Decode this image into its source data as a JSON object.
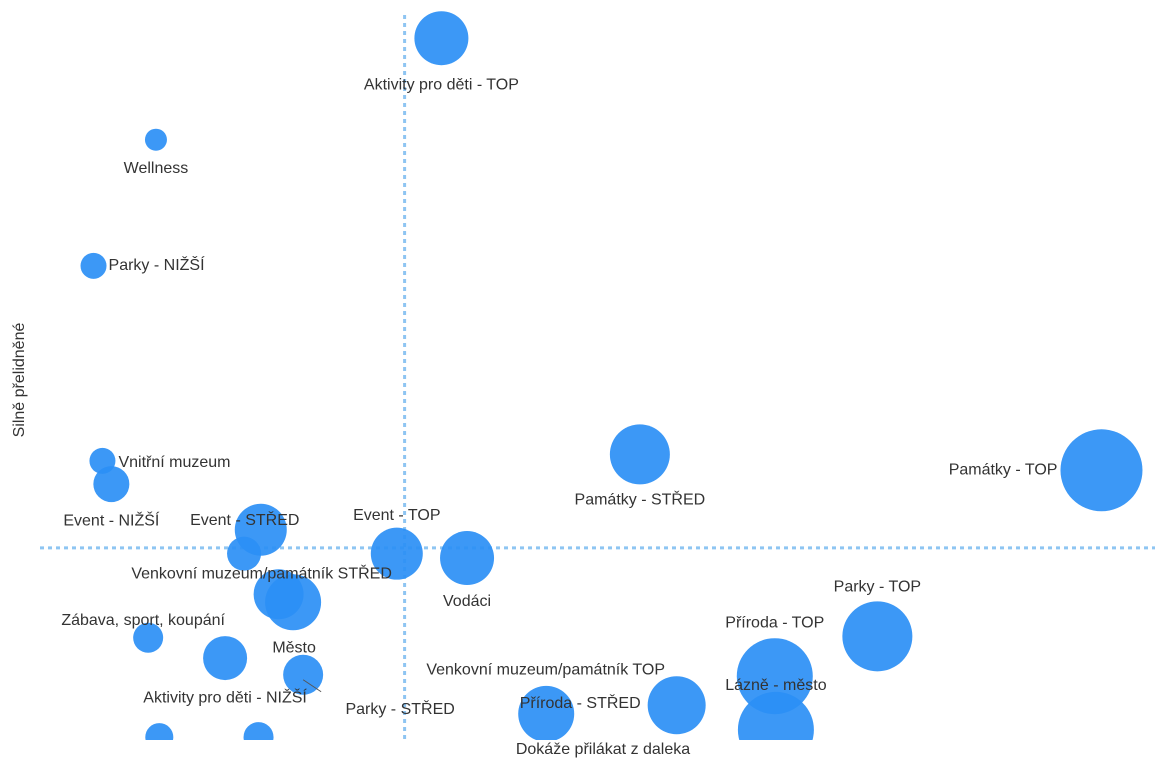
{
  "chart_data": {
    "type": "bubble",
    "ylabel": "Silně přelidněné",
    "xlabel": "Dokáže přilákat z daleka",
    "xlim": [
      0,
      100
    ],
    "ylim": [
      0,
      100
    ],
    "xref": 32.7,
    "yref": 26.5,
    "color": "#2b8ff5",
    "refcolor": "#8ec5f2",
    "series": [
      {
        "labels": [
          "Aktivity pro děti - TOP",
          "Wellness",
          "Parky - NIŽŠÍ",
          "Vnitřní muzeum",
          "Event - NIŽŠÍ",
          "Event - STŘED",
          null,
          "Venkovní muzeum/památník STŘED",
          "Město",
          "Event - TOP",
          "Vodáci",
          "Památky - STŘED",
          "Památky - TOP",
          "Parky - TOP",
          "Příroda - TOP",
          "Lázně - město",
          "Venkovní muzeum/památník TOP",
          "Příroda - STŘED",
          "Zábava, sport, koupání",
          "Aktivity pro děti - NIŽŠÍ",
          "Parky - STŘED",
          null,
          null
        ],
        "x": [
          36.0,
          10.4,
          4.8,
          5.6,
          6.4,
          19.8,
          18.3,
          21.4,
          22.7,
          32.0,
          38.3,
          53.8,
          95.2,
          75.1,
          65.9,
          66.0,
          57.1,
          45.4,
          9.7,
          16.6,
          23.6,
          10.7,
          19.6
        ],
        "values": [
          96.8,
          82.8,
          65.4,
          38.5,
          35.3,
          29.0,
          25.7,
          20.1,
          19.0,
          25.7,
          25.1,
          39.4,
          37.2,
          14.3,
          8.8,
          1.4,
          4.8,
          3.6,
          14.1,
          11.3,
          9.0,
          0.4,
          0.4
        ],
        "sizes": [
          27,
          11,
          13,
          13,
          18,
          26,
          17,
          25,
          28,
          26,
          27,
          30,
          41,
          35,
          38,
          38,
          29,
          28,
          15,
          22,
          20,
          14,
          15
        ]
      }
    ]
  }
}
